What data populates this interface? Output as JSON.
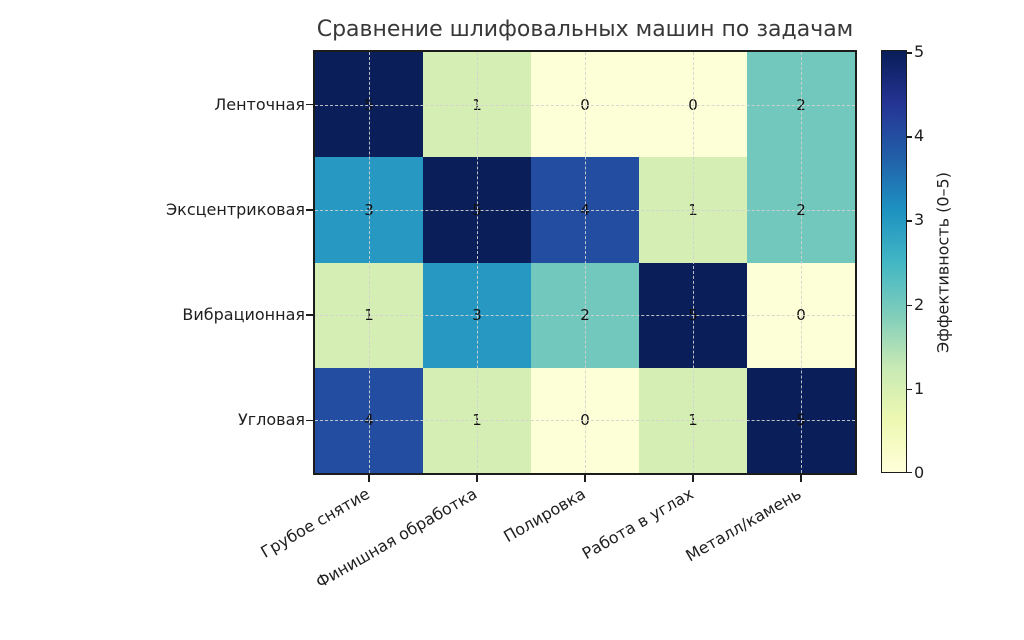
{
  "title": "Сравнение шлифовальных машин по задачам",
  "chart_data": {
    "type": "heatmap",
    "title": "Сравнение шлифовальных машин по задачам",
    "rows": [
      "Ленточная",
      "Эксцентриковая",
      "Вибрационная",
      "Угловая"
    ],
    "columns": [
      "Грубое снятие",
      "Финишная обработка",
      "Полировка",
      "Работа в углах",
      "Металл/камень"
    ],
    "values": [
      [
        5,
        1,
        0,
        0,
        2
      ],
      [
        3,
        5,
        4,
        1,
        2
      ],
      [
        1,
        3,
        2,
        5,
        0
      ],
      [
        4,
        1,
        0,
        1,
        5
      ]
    ],
    "vmin": 0,
    "vmax": 5,
    "colormap": "YlGnBu",
    "value_colors": {
      "0": "#fdffd6",
      "1": "#d5eeb3",
      "2": "#72c8bd",
      "3": "#2798c1",
      "4": "#234da0",
      "5": "#0a1e5a"
    },
    "gradient_stops": [
      "#ffffd9",
      "#edf8b1",
      "#c7e9b4",
      "#7fcdbb",
      "#41b6c4",
      "#1d91c0",
      "#225ea8",
      "#253494",
      "#081d58"
    ],
    "colorbar": {
      "label": "Эффективность (0–5)",
      "ticks": [
        "0",
        "1",
        "2",
        "3",
        "4",
        "5"
      ]
    },
    "grid": true,
    "grid_style": "dashed",
    "legend_position": "right-colorbar"
  }
}
